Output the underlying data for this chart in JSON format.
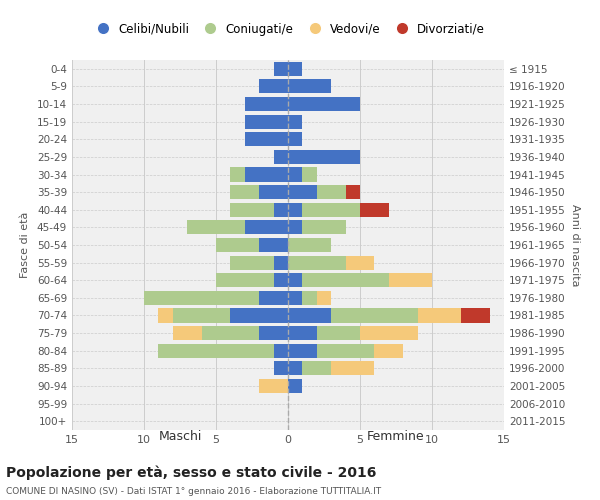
{
  "age_groups": [
    "0-4",
    "5-9",
    "10-14",
    "15-19",
    "20-24",
    "25-29",
    "30-34",
    "35-39",
    "40-44",
    "45-49",
    "50-54",
    "55-59",
    "60-64",
    "65-69",
    "70-74",
    "75-79",
    "80-84",
    "85-89",
    "90-94",
    "95-99",
    "100+"
  ],
  "birth_years": [
    "2011-2015",
    "2006-2010",
    "2001-2005",
    "1996-2000",
    "1991-1995",
    "1986-1990",
    "1981-1985",
    "1976-1980",
    "1971-1975",
    "1966-1970",
    "1961-1965",
    "1956-1960",
    "1951-1955",
    "1946-1950",
    "1941-1945",
    "1936-1940",
    "1931-1935",
    "1926-1930",
    "1921-1925",
    "1916-1920",
    "≤ 1915"
  ],
  "maschi": {
    "celibe": [
      1,
      2,
      3,
      3,
      3,
      1,
      3,
      2,
      1,
      3,
      2,
      1,
      1,
      2,
      4,
      2,
      1,
      1,
      0,
      0,
      0
    ],
    "coniugato": [
      0,
      0,
      0,
      0,
      0,
      0,
      1,
      2,
      3,
      4,
      3,
      3,
      4,
      8,
      4,
      4,
      8,
      0,
      0,
      0,
      0
    ],
    "vedovo": [
      0,
      0,
      0,
      0,
      0,
      0,
      0,
      0,
      0,
      0,
      0,
      0,
      0,
      0,
      1,
      2,
      0,
      0,
      2,
      0,
      0
    ],
    "divorziato": [
      0,
      0,
      0,
      0,
      0,
      0,
      0,
      0,
      0,
      0,
      0,
      0,
      0,
      0,
      0,
      0,
      0,
      0,
      0,
      0,
      0
    ]
  },
  "femmine": {
    "celibe": [
      1,
      3,
      5,
      1,
      1,
      5,
      1,
      2,
      1,
      1,
      0,
      0,
      1,
      1,
      3,
      2,
      2,
      1,
      1,
      0,
      0
    ],
    "coniugato": [
      0,
      0,
      0,
      0,
      0,
      0,
      1,
      2,
      4,
      3,
      3,
      4,
      6,
      1,
      6,
      3,
      4,
      2,
      0,
      0,
      0
    ],
    "vedovo": [
      0,
      0,
      0,
      0,
      0,
      0,
      0,
      0,
      0,
      0,
      0,
      2,
      3,
      1,
      3,
      4,
      2,
      3,
      0,
      0,
      0
    ],
    "divorziato": [
      0,
      0,
      0,
      0,
      0,
      0,
      0,
      1,
      2,
      0,
      0,
      0,
      0,
      0,
      2,
      0,
      0,
      0,
      0,
      0,
      0
    ]
  },
  "colors": {
    "celibe": "#4472C4",
    "coniugato": "#AECB8E",
    "vedovo": "#F5C97A",
    "divorziato": "#C0392B"
  },
  "xlim": 15,
  "title": "Popolazione per età, sesso e stato civile - 2016",
  "subtitle": "COMUNE DI NASINO (SV) - Dati ISTAT 1° gennaio 2016 - Elaborazione TUTTITALIA.IT",
  "ylabel_left": "Fasce di età",
  "ylabel_right": "Anni di nascita",
  "legend_labels": [
    "Celibi/Nubili",
    "Coniugati/e",
    "Vedovi/e",
    "Divorziati/e"
  ],
  "background_color": "#ffffff",
  "plot_bg_color": "#f0f0f0",
  "grid_color": "#cccccc"
}
